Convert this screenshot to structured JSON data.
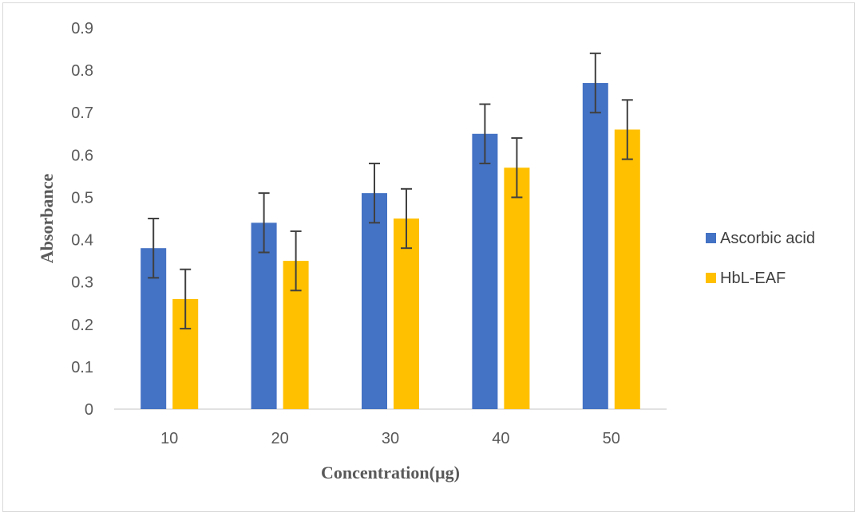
{
  "chart_data": {
    "type": "bar",
    "title": "",
    "xlabel": "Concentration(µg)",
    "ylabel": "Absorbance",
    "categories": [
      "10",
      "20",
      "30",
      "40",
      "50"
    ],
    "ylim": [
      0,
      0.9
    ],
    "yticks": [
      "0",
      "0.1",
      "0.2",
      "0.3",
      "0.4",
      "0.5",
      "0.6",
      "0.7",
      "0.8",
      "0.9"
    ],
    "grid": false,
    "legend_position": "right",
    "error_bar": 0.07,
    "series": [
      {
        "name": "Ascorbic acid",
        "color": "#4472C4",
        "values": [
          0.38,
          0.44,
          0.51,
          0.65,
          0.77
        ]
      },
      {
        "name": "HbL-EAF",
        "color": "#FFC000",
        "values": [
          0.26,
          0.35,
          0.45,
          0.57,
          0.66
        ]
      }
    ]
  }
}
